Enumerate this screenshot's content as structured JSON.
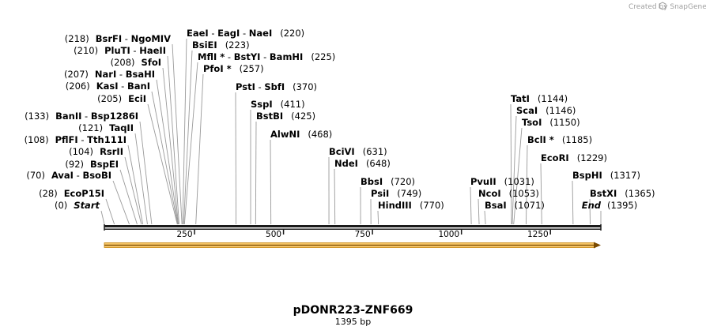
{
  "credit": "Created by SnapGene",
  "plasmid": {
    "name": "pDONR223-ZNF669",
    "size_label": "1395 bp",
    "length": 1395
  },
  "colors": {
    "backbone": "#1a1a1a",
    "feature_fill": "#f7c76a",
    "feature_border": "#c9860a",
    "line": "#9a9a9a"
  },
  "ticks": [
    {
      "pos": 250,
      "label": "250"
    },
    {
      "pos": 500,
      "label": "500"
    },
    {
      "pos": 750,
      "label": "750"
    },
    {
      "pos": 1000,
      "label": "1000"
    },
    {
      "pos": 1250,
      "label": "1250"
    }
  ],
  "sites": [
    {
      "pos": 0,
      "left": "(0)",
      "parts": [
        {
          "t": "Start",
          "s": "it"
        }
      ]
    },
    {
      "pos": 28,
      "left": "(28)",
      "parts": [
        {
          "t": "EcoP15I",
          "s": "b"
        }
      ]
    },
    {
      "pos": 70,
      "left": "(70)",
      "parts": [
        {
          "t": "AvaI",
          "s": "b"
        },
        {
          "t": "  -  ",
          "s": "n"
        },
        {
          "t": "BsoBI",
          "s": "b"
        }
      ]
    },
    {
      "pos": 92,
      "left": "(92)",
      "parts": [
        {
          "t": "BspEI",
          "s": "b"
        }
      ]
    },
    {
      "pos": 104,
      "left": "(104)",
      "parts": [
        {
          "t": "RsrII",
          "s": "b"
        }
      ]
    },
    {
      "pos": 108,
      "left": "(108)",
      "parts": [
        {
          "t": "PflFI",
          "s": "b"
        },
        {
          "t": "  -  ",
          "s": "n"
        },
        {
          "t": "Tth111I",
          "s": "b"
        }
      ]
    },
    {
      "pos": 121,
      "left": "(121)",
      "parts": [
        {
          "t": "TaqII",
          "s": "b"
        }
      ]
    },
    {
      "pos": 133,
      "left": "(133)",
      "parts": [
        {
          "t": "BanII",
          "s": "b"
        },
        {
          "t": "  -  ",
          "s": "n"
        },
        {
          "t": "Bsp1286I",
          "s": "b"
        }
      ]
    },
    {
      "pos": 205,
      "left": "(205)",
      "parts": [
        {
          "t": "EciI",
          "s": "b"
        }
      ]
    },
    {
      "pos": 206,
      "left": "(206)",
      "parts": [
        {
          "t": "KasI",
          "s": "b"
        },
        {
          "t": "  -  ",
          "s": "n"
        },
        {
          "t": "BanI",
          "s": "b"
        }
      ]
    },
    {
      "pos": 207,
      "left": "(207)",
      "parts": [
        {
          "t": "NarI",
          "s": "b"
        },
        {
          "t": "  -  ",
          "s": "n"
        },
        {
          "t": "BsaHI",
          "s": "b"
        }
      ]
    },
    {
      "pos": 208,
      "left": "(208)",
      "parts": [
        {
          "t": "SfoI",
          "s": "b"
        }
      ]
    },
    {
      "pos": 210,
      "left": "(210)",
      "parts": [
        {
          "t": "PluTI",
          "s": "b"
        },
        {
          "t": "  -  ",
          "s": "n"
        },
        {
          "t": "HaeII",
          "s": "b"
        }
      ]
    },
    {
      "pos": 218,
      "left": "(218)",
      "parts": [
        {
          "t": "BsrFI",
          "s": "b"
        },
        {
          "t": "  -  ",
          "s": "n"
        },
        {
          "t": "NgoMIV",
          "s": "b"
        }
      ]
    },
    {
      "pos": 220,
      "right": "(220)",
      "parts": [
        {
          "t": "EaeI",
          "s": "b"
        },
        {
          "t": "  -  ",
          "s": "n"
        },
        {
          "t": "EagI",
          "s": "b"
        },
        {
          "t": "  -  ",
          "s": "n"
        },
        {
          "t": "NaeI",
          "s": "b"
        }
      ]
    },
    {
      "pos": 223,
      "right": "(223)",
      "parts": [
        {
          "t": "BsiEI",
          "s": "b"
        }
      ]
    },
    {
      "pos": 225,
      "right": "(225)",
      "parts": [
        {
          "t": "MflI *",
          "s": "b"
        },
        {
          "t": " - ",
          "s": "n"
        },
        {
          "t": "BstYI",
          "s": "b"
        },
        {
          "t": "  -  ",
          "s": "n"
        },
        {
          "t": "BamHI",
          "s": "b"
        }
      ]
    },
    {
      "pos": 257,
      "right": "(257)",
      "parts": [
        {
          "t": "PfoI *",
          "s": "b"
        }
      ]
    },
    {
      "pos": 370,
      "right": "(370)",
      "parts": [
        {
          "t": "PstI",
          "s": "b"
        },
        {
          "t": "  -  ",
          "s": "n"
        },
        {
          "t": "SbfI",
          "s": "b"
        }
      ]
    },
    {
      "pos": 411,
      "right": "(411)",
      "parts": [
        {
          "t": "SspI",
          "s": "b"
        }
      ]
    },
    {
      "pos": 425,
      "right": "(425)",
      "parts": [
        {
          "t": "BstBI",
          "s": "b"
        }
      ]
    },
    {
      "pos": 468,
      "right": "(468)",
      "parts": [
        {
          "t": "AlwNI",
          "s": "b"
        }
      ]
    },
    {
      "pos": 631,
      "right": "(631)",
      "parts": [
        {
          "t": "BciVI",
          "s": "b"
        }
      ]
    },
    {
      "pos": 648,
      "right": "(648)",
      "parts": [
        {
          "t": "NdeI",
          "s": "b"
        }
      ]
    },
    {
      "pos": 720,
      "right": "(720)",
      "parts": [
        {
          "t": "BbsI",
          "s": "b"
        }
      ]
    },
    {
      "pos": 749,
      "right": "(749)",
      "parts": [
        {
          "t": "PsiI",
          "s": "b"
        }
      ]
    },
    {
      "pos": 770,
      "right": "(770)",
      "parts": [
        {
          "t": "HindIII",
          "s": "b"
        }
      ]
    },
    {
      "pos": 1031,
      "right": "(1031)",
      "parts": [
        {
          "t": "PvuII",
          "s": "b"
        }
      ]
    },
    {
      "pos": 1053,
      "right": "(1053)",
      "parts": [
        {
          "t": "NcoI",
          "s": "b"
        }
      ]
    },
    {
      "pos": 1071,
      "right": "(1071)",
      "parts": [
        {
          "t": "BsaI",
          "s": "b"
        }
      ]
    },
    {
      "pos": 1144,
      "right": "(1144)",
      "parts": [
        {
          "t": "TatI",
          "s": "b"
        }
      ]
    },
    {
      "pos": 1146,
      "right": "(1146)",
      "parts": [
        {
          "t": "ScaI",
          "s": "b"
        }
      ]
    },
    {
      "pos": 1150,
      "right": "(1150)",
      "parts": [
        {
          "t": "TsoI",
          "s": "b"
        }
      ]
    },
    {
      "pos": 1185,
      "right": "(1185)",
      "parts": [
        {
          "t": "BclI *",
          "s": "b"
        }
      ]
    },
    {
      "pos": 1229,
      "right": "(1229)",
      "parts": [
        {
          "t": "EcoRI",
          "s": "b"
        }
      ]
    },
    {
      "pos": 1317,
      "right": "(1317)",
      "parts": [
        {
          "t": "BspHI",
          "s": "b"
        }
      ]
    },
    {
      "pos": 1365,
      "right": "(1365)",
      "parts": [
        {
          "t": "BstXI",
          "s": "b"
        }
      ]
    },
    {
      "pos": 1395,
      "right": "(1395)",
      "parts": [
        {
          "t": "End",
          "s": "it"
        }
      ]
    }
  ]
}
